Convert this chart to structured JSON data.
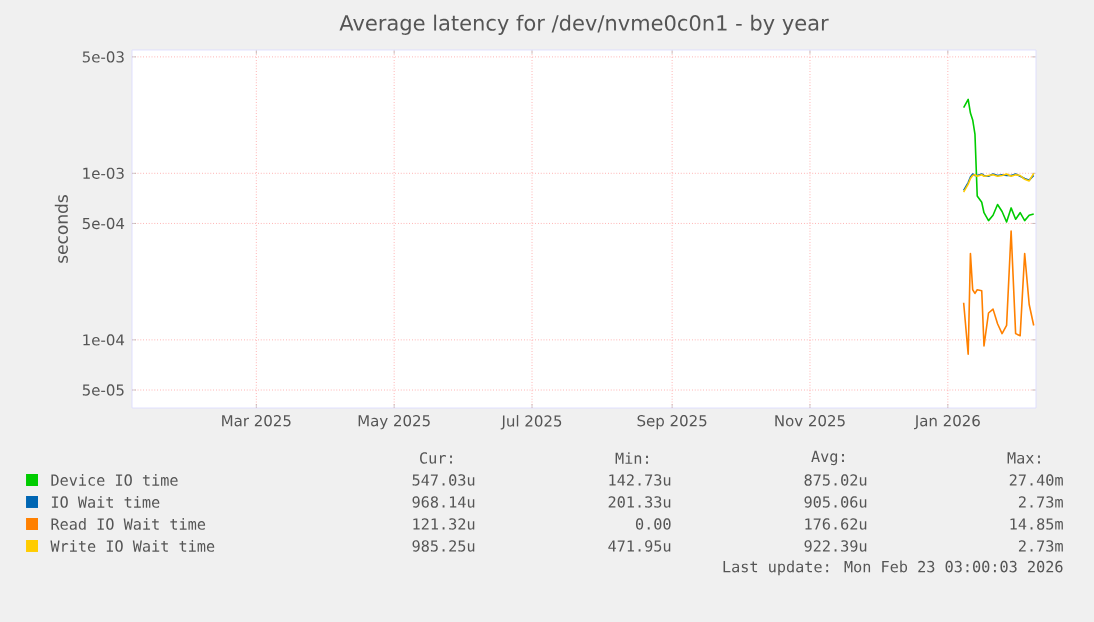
{
  "chart_data": {
    "type": "line",
    "title": "Average latency for /dev/nvme0c0n1 - by year",
    "ylabel": "seconds",
    "x": [
      "2026-01-08",
      "2026-01-10",
      "2026-01-11",
      "2026-01-12",
      "2026-01-13",
      "2026-01-14",
      "2026-01-16",
      "2026-01-17",
      "2026-01-19",
      "2026-01-21",
      "2026-01-23",
      "2026-01-25",
      "2026-01-27",
      "2026-01-29",
      "2026-01-31",
      "2026-02-02",
      "2026-02-04",
      "2026-02-06",
      "2026-02-08"
    ],
    "series": [
      {
        "name": "Device IO time",
        "color": "#00cc00",
        "values": [
          0.00248,
          0.00278,
          0.0023,
          0.00209,
          0.00172,
          0.00073,
          0.00067,
          0.00058,
          0.00052,
          0.00056,
          0.00065,
          0.00059,
          0.00051,
          0.00062,
          0.00053,
          0.00058,
          0.00052,
          0.00056,
          0.00057
        ]
      },
      {
        "name": "IO Wait time",
        "color": "#0066b3",
        "values": [
          0.00079,
          0.00088,
          0.00095,
          0.00099,
          0.00097,
          0.00097,
          0.00099,
          0.00097,
          0.00096,
          0.00099,
          0.00097,
          0.00098,
          0.00097,
          0.00097,
          0.00099,
          0.00096,
          0.00093,
          0.00091,
          0.00097
        ]
      },
      {
        "name": "Read IO Wait time",
        "color": "#ff8000",
        "values": [
          0.000167,
          8.2e-05,
          0.00033,
          0.0002,
          0.00019,
          0.0002,
          0.000197,
          9.2e-05,
          0.000145,
          0.000153,
          0.000125,
          0.000109,
          0.000122,
          0.00045,
          0.000109,
          0.000106,
          0.00033,
          0.000163,
          0.000122
        ]
      },
      {
        "name": "Write IO Wait time",
        "color": "#ffcc00",
        "values": [
          0.00077,
          0.00086,
          0.00093,
          0.00097,
          0.00098,
          0.00096,
          0.00098,
          0.00096,
          0.00097,
          0.00098,
          0.00096,
          0.00097,
          0.00099,
          0.00096,
          0.00098,
          0.00097,
          0.00092,
          0.0009,
          0.001
        ]
      }
    ],
    "xlim": [
      "2025-01-05",
      "2026-02-09"
    ],
    "xticks": [
      {
        "value": "2025-03-01",
        "label": "Mar 2025"
      },
      {
        "value": "2025-05-01",
        "label": "May 2025"
      },
      {
        "value": "2025-07-01",
        "label": "Jul 2025"
      },
      {
        "value": "2025-09-01",
        "label": "Sep 2025"
      },
      {
        "value": "2025-11-01",
        "label": "Nov 2025"
      },
      {
        "value": "2026-01-01",
        "label": "Jan 2026"
      }
    ],
    "ylim": [
      3.9e-05,
      0.0055
    ],
    "yticks": [
      {
        "value": 5e-05,
        "label": "5e-05"
      },
      {
        "value": 0.0001,
        "label": "1e-04"
      },
      {
        "value": 0.0005,
        "label": "5e-04"
      },
      {
        "value": 0.001,
        "label": "1e-03"
      },
      {
        "value": 0.005,
        "label": "5e-03"
      }
    ],
    "log": "y",
    "grid": true,
    "legend": "bottom",
    "annotations": [
      "Cur:",
      "Min:",
      "Avg:",
      "Max:",
      "547.03u",
      "142.73u",
      "875.02u",
      "27.40m",
      "968.14u",
      "201.33u",
      "905.06u",
      "2.73m",
      "121.32u",
      "0.00",
      "176.62u",
      "14.85m",
      "985.25u",
      "471.95u",
      "922.39u",
      "2.73m",
      "Last update: Mon Feb 23 03:00:03 2026"
    ]
  }
}
